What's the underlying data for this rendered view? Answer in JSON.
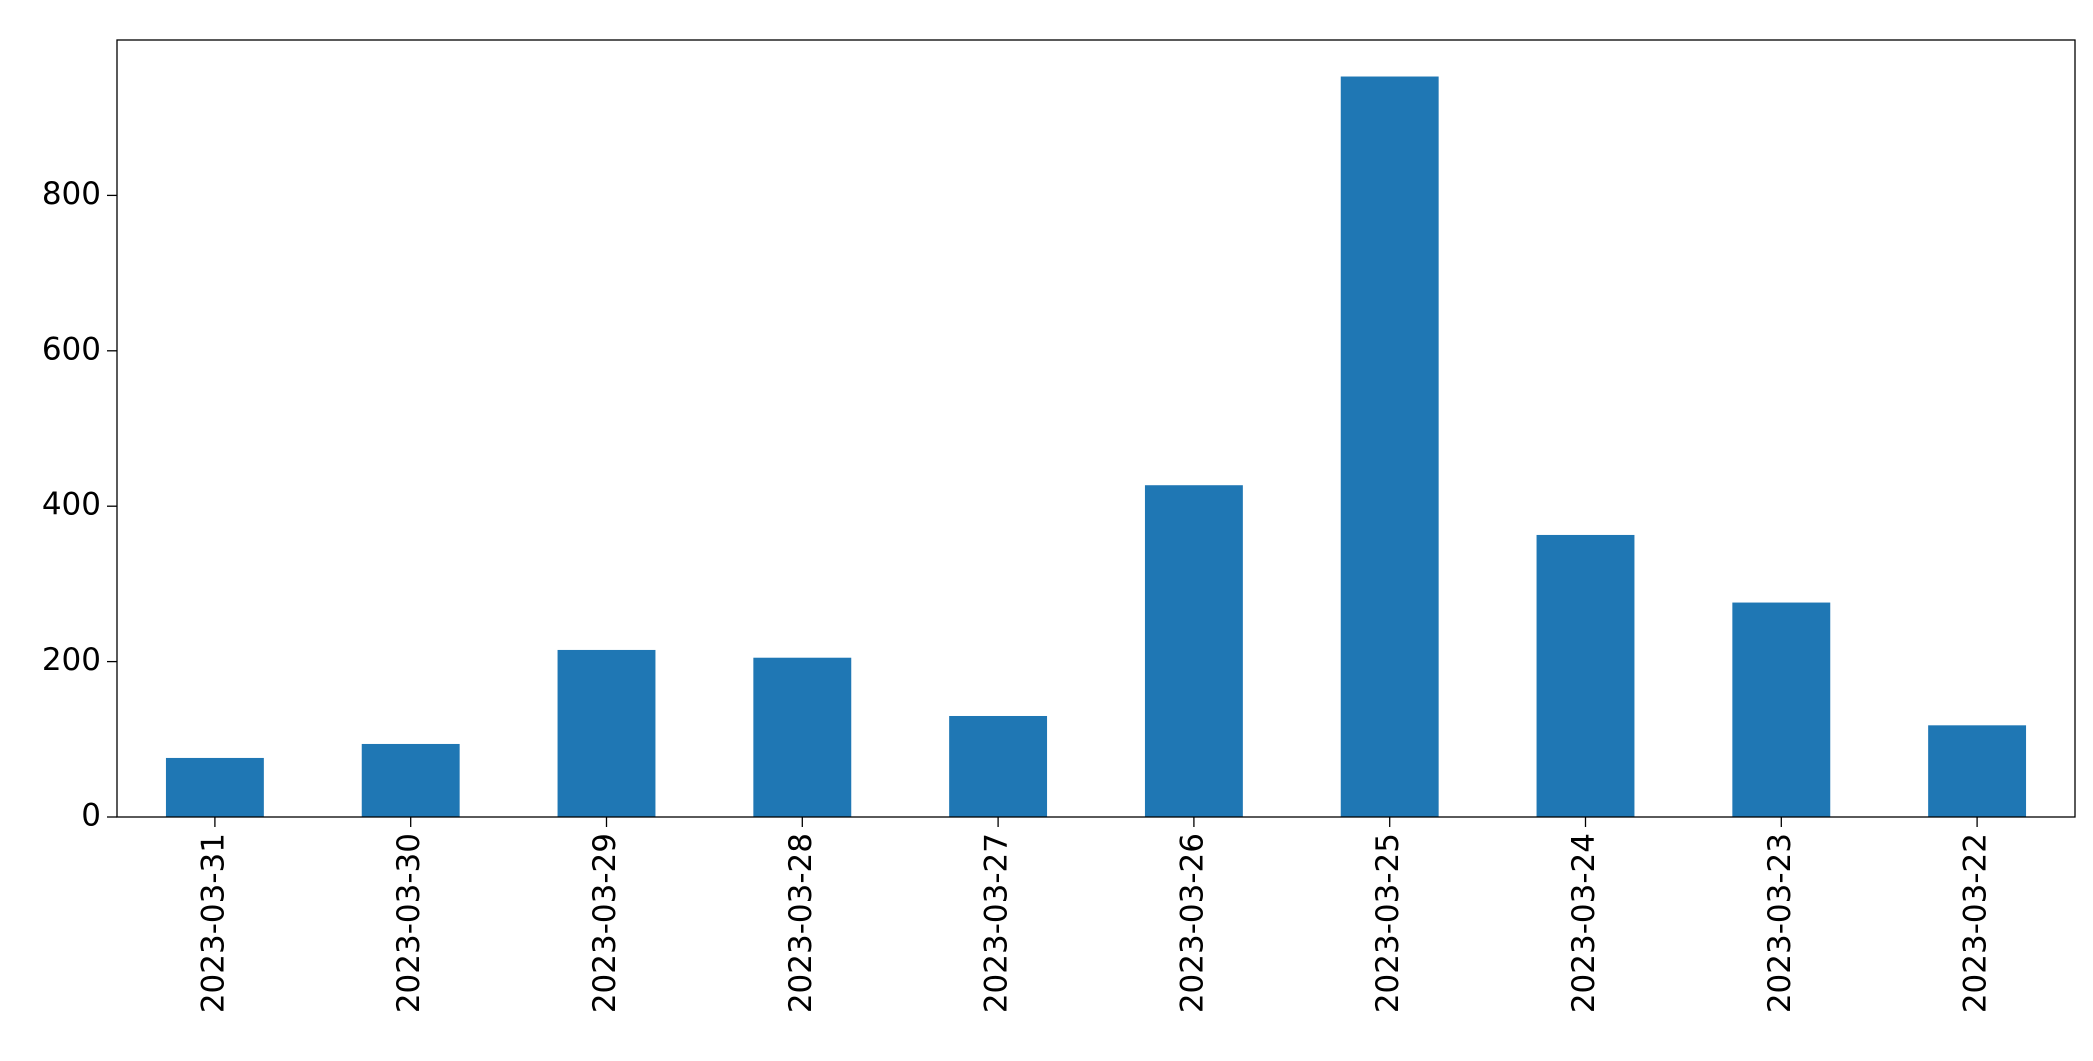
{
  "chart_data": {
    "type": "bar",
    "categories": [
      "2023-03-31",
      "2023-03-30",
      "2023-03-29",
      "2023-03-28",
      "2023-03-27",
      "2023-03-26",
      "2023-03-25",
      "2023-03-24",
      "2023-03-23",
      "2023-03-22"
    ],
    "values": [
      76,
      94,
      215,
      205,
      130,
      427,
      953,
      363,
      276,
      118
    ],
    "color": "#1f77b4",
    "ylim": [
      0,
      1000
    ],
    "yticks": [
      0,
      200,
      400,
      600,
      800
    ],
    "grid": false
  }
}
